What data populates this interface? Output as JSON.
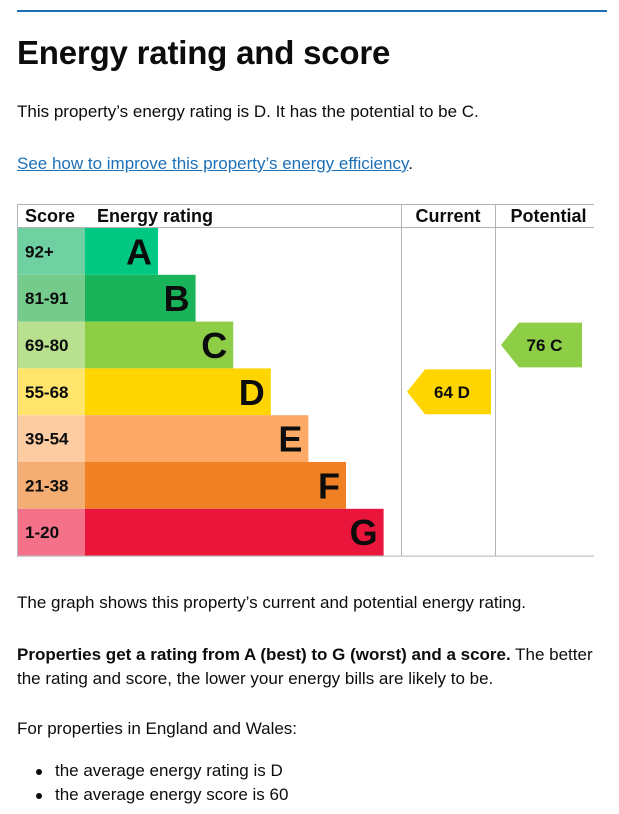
{
  "page": {
    "title": "Energy rating and score",
    "summary": "This property’s energy rating is D. It has the potential to be C.",
    "improve_link": "See how to improve this property’s energy efficiency",
    "improve_link_suffix": ".",
    "graph_caption": "The graph shows this property’s current and potential energy rating.",
    "rating_intro_bold": "Properties get a rating from A (best) to G (worst) and a score.",
    "rating_intro_rest": " The better the rating and score, the lower your energy bills are likely to be.",
    "region_intro": "For properties in England and Wales:",
    "bullets": [
      "the average energy rating is D",
      "the average energy score is 60"
    ]
  },
  "chart_data": {
    "type": "table",
    "headers": {
      "score": "Score",
      "rating": "Energy rating",
      "current": "Current",
      "potential": "Potential"
    },
    "bands": [
      {
        "letter": "A",
        "range": "92+",
        "color": "#00c781",
        "score_bg": "#6fd0a2"
      },
      {
        "letter": "B",
        "range": "81-91",
        "color": "#19b459",
        "score_bg": "#74cb8c"
      },
      {
        "letter": "C",
        "range": "69-80",
        "color": "#8dce46",
        "score_bg": "#b9e08e"
      },
      {
        "letter": "D",
        "range": "55-68",
        "color": "#ffd500",
        "score_bg": "#ffe56b"
      },
      {
        "letter": "E",
        "range": "39-54",
        "color": "#fcaa65",
        "score_bg": "#fdcca3"
      },
      {
        "letter": "F",
        "range": "21-38",
        "color": "#ef8023",
        "score_bg": "#f4ad72"
      },
      {
        "letter": "G",
        "range": "1-20",
        "color": "#e9153b",
        "score_bg": "#f4718a"
      }
    ],
    "current": {
      "score": 64,
      "letter": "D",
      "color": "#ffd500"
    },
    "potential": {
      "score": 76,
      "letter": "C",
      "color": "#8dce46"
    }
  }
}
